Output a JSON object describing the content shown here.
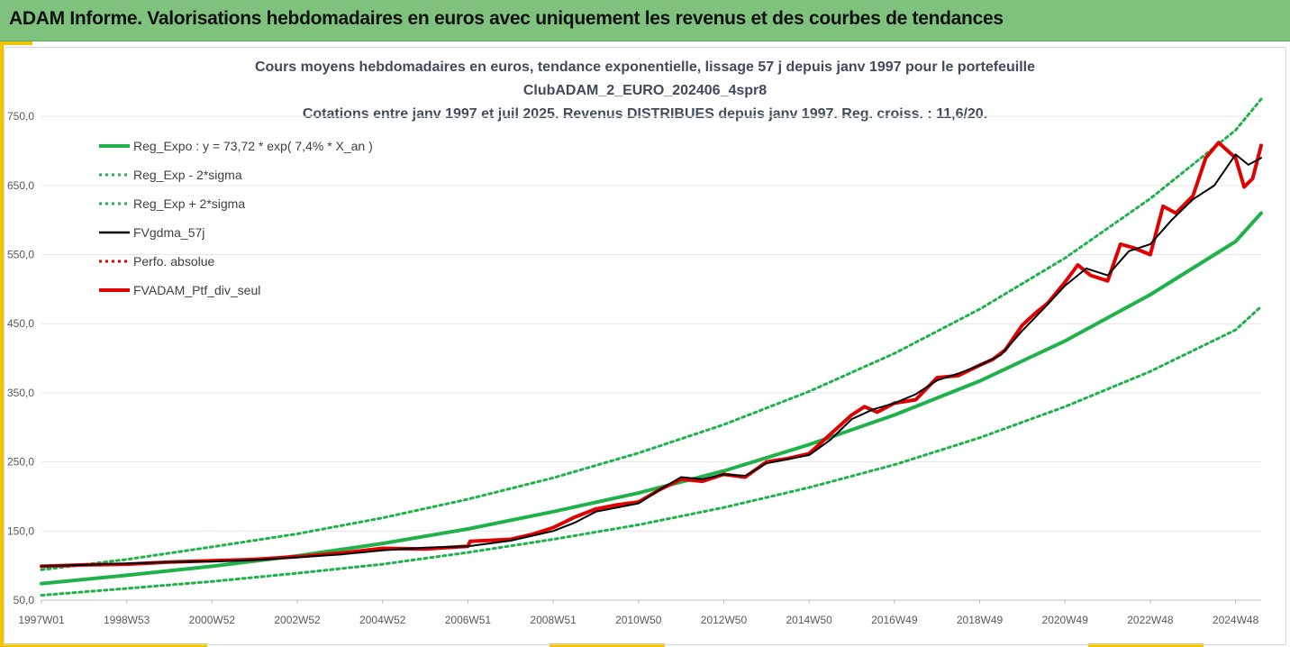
{
  "header": {
    "title": "ADAM Informe. Valorisations hebdomadaires en euros avec uniquement les revenus et des courbes de tendances"
  },
  "colors": {
    "banner": "#7ec27e",
    "accent": "#f2c300",
    "trend": "#1fb24a",
    "smoothed": "#000000",
    "portfolio": "#e00000"
  },
  "chart_data": {
    "type": "line",
    "title_lines": [
      "Cours moyens hebdomadaires  en euros, tendance exponentielle, lissage 57 j depuis janv 1997 pour le portefeuille",
      "ClubADAM_2_EURO_202406_4spr8",
      "Cotations  entre janv 1997 et juil 2025. Revenus DISTRIBUES depuis janv 1997. Reg. croiss. : 11,6/20."
    ],
    "xlabel": "",
    "ylabel": "",
    "ylim": [
      50,
      775
    ],
    "y_ticks": [
      "50,0",
      "150,0",
      "250,0",
      "350,0",
      "450,0",
      "550,0",
      "650,0",
      "750,0"
    ],
    "y_tick_values": [
      50,
      150,
      250,
      350,
      450,
      550,
      650,
      750
    ],
    "xlim": [
      1997.0,
      2025.6
    ],
    "x_ticks": [
      "1997W01",
      "1998W53",
      "2000W52",
      "2002W52",
      "2004W52",
      "2006W51",
      "2008W51",
      "2010W50",
      "2012W50",
      "2014W50",
      "2016W49",
      "2018W49",
      "2020W49",
      "2022W48",
      "2024W48"
    ],
    "x_tick_values": [
      1997.0,
      1999.0,
      2001.0,
      2003.0,
      2005.0,
      2007.0,
      2009.0,
      2011.0,
      2013.0,
      2015.0,
      2017.0,
      2019.0,
      2021.0,
      2023.0,
      2025.0
    ],
    "grid": "horizontal",
    "legend_position": "top-left",
    "legend": [
      {
        "label": "Reg_Expo : y = 73,72 * exp( 7,4% *  X_an )",
        "color": "#1fb24a",
        "style": "solid-thick"
      },
      {
        "label": "Reg_Exp - 2*sigma",
        "color": "#1fb24a",
        "style": "dotted"
      },
      {
        "label": "Reg_Exp + 2*sigma",
        "color": "#1fb24a",
        "style": "dotted"
      },
      {
        "label": "FVgdma_57j",
        "color": "#000000",
        "style": "solid"
      },
      {
        "label": "Perfo. absolue",
        "color": "#e00000",
        "style": "dotted"
      },
      {
        "label": "FVADAM_Ptf_div_seul",
        "color": "#e00000",
        "style": "solid-thick"
      }
    ],
    "series": [
      {
        "name": "Reg_Expo : y = 73,72 * exp( 7,4% *  X_an )",
        "x": [
          1997.0,
          1999.0,
          2001.0,
          2003.0,
          2005.0,
          2007.0,
          2009.0,
          2011.0,
          2013.0,
          2015.0,
          2017.0,
          2019.0,
          2021.0,
          2023.0,
          2025.0,
          2025.6
        ],
        "y": [
          74,
          86,
          99,
          114,
          132,
          153,
          178,
          205,
          237,
          275,
          318,
          367,
          425,
          492,
          569,
          610
        ]
      },
      {
        "name": "Reg_Exp - 2*sigma",
        "x": [
          1997.0,
          1999.0,
          2001.0,
          2003.0,
          2005.0,
          2007.0,
          2009.0,
          2011.0,
          2013.0,
          2015.0,
          2017.0,
          2019.0,
          2021.0,
          2023.0,
          2025.0,
          2025.6
        ],
        "y": [
          57,
          67,
          77,
          89,
          102,
          119,
          138,
          159,
          184,
          213,
          246,
          285,
          330,
          381,
          441,
          475
        ]
      },
      {
        "name": "Reg_Exp + 2*sigma",
        "x": [
          1997.0,
          1999.0,
          2001.0,
          2003.0,
          2005.0,
          2007.0,
          2009.0,
          2011.0,
          2013.0,
          2015.0,
          2017.0,
          2019.0,
          2021.0,
          2023.0,
          2025.0,
          2025.6
        ],
        "y": [
          94,
          109,
          127,
          146,
          169,
          196,
          227,
          263,
          304,
          352,
          407,
          471,
          545,
          631,
          730,
          775
        ]
      },
      {
        "name": "FVgdma_57j",
        "x": [
          1997.0,
          1998.0,
          1999.0,
          2000.0,
          2001.0,
          2002.0,
          2003.0,
          2004.0,
          2005.0,
          2006.0,
          2007.0,
          2008.0,
          2009.0,
          2009.5,
          2010.0,
          2011.0,
          2011.5,
          2012.0,
          2012.5,
          2013.0,
          2013.5,
          2014.0,
          2015.0,
          2015.5,
          2016.0,
          2016.5,
          2017.0,
          2017.5,
          2018.0,
          2018.5,
          2019.0,
          2019.5,
          2020.0,
          2020.5,
          2021.0,
          2021.5,
          2022.0,
          2022.5,
          2023.0,
          2023.5,
          2024.0,
          2024.5,
          2025.0,
          2025.3,
          2025.6
        ],
        "y": [
          99,
          101,
          103,
          105,
          106,
          108,
          112,
          116,
          122,
          126,
          128,
          136,
          150,
          162,
          178,
          190,
          210,
          228,
          225,
          232,
          230,
          248,
          260,
          282,
          312,
          326,
          335,
          348,
          368,
          378,
          390,
          405,
          440,
          472,
          505,
          530,
          520,
          555,
          565,
          600,
          630,
          650,
          695,
          680,
          690
        ]
      },
      {
        "name": "FVADAM_Ptf_div_seul",
        "x": [
          1997.0,
          1998.0,
          1999.0,
          2000.0,
          2001.0,
          2002.0,
          2003.0,
          2004.0,
          2005.0,
          2006.0,
          2007.0,
          2007.05,
          2008.0,
          2008.5,
          2009.0,
          2009.5,
          2010.0,
          2010.5,
          2011.0,
          2011.5,
          2012.0,
          2012.5,
          2013.0,
          2013.5,
          2014.0,
          2014.5,
          2015.0,
          2015.5,
          2016.0,
          2016.3,
          2016.6,
          2017.0,
          2017.5,
          2018.0,
          2018.5,
          2019.0,
          2019.3,
          2019.6,
          2020.0,
          2020.3,
          2020.6,
          2021.0,
          2021.3,
          2021.6,
          2022.0,
          2022.3,
          2022.6,
          2023.0,
          2023.3,
          2023.6,
          2024.0,
          2024.3,
          2024.6,
          2025.0,
          2025.2,
          2025.4,
          2025.6
        ],
        "y": [
          99,
          101,
          102,
          105,
          107,
          109,
          113,
          118,
          125,
          124,
          128,
          135,
          138,
          145,
          155,
          170,
          182,
          188,
          192,
          210,
          225,
          222,
          232,
          228,
          250,
          255,
          262,
          290,
          318,
          330,
          322,
          335,
          340,
          372,
          375,
          390,
          398,
          412,
          448,
          465,
          480,
          510,
          535,
          520,
          512,
          565,
          560,
          550,
          620,
          610,
          635,
          690,
          712,
          690,
          648,
          660,
          708
        ]
      }
    ]
  }
}
